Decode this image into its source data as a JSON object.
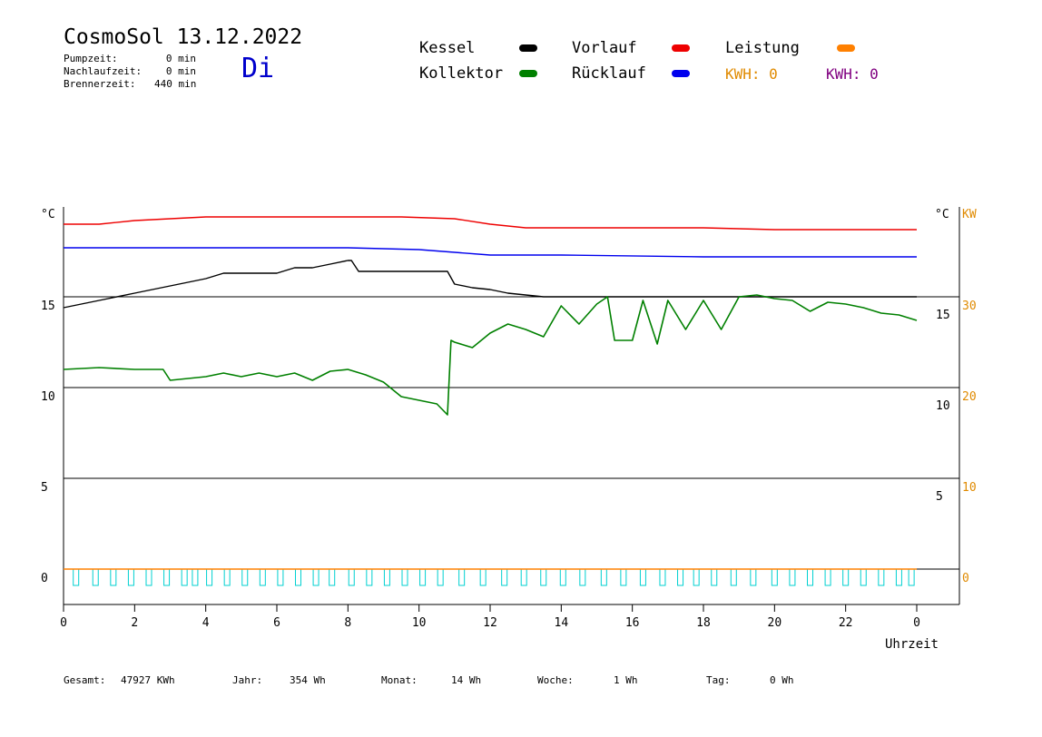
{
  "header": {
    "title": "CosmoSol 13.12.2022",
    "weekday": "Di",
    "stats": [
      {
        "label": "Pumpzeit:",
        "value": "0 min"
      },
      {
        "label": "Nachlaufzeit:",
        "value": "0 min"
      },
      {
        "label": "Brennerzeit:",
        "value": "440 min"
      }
    ]
  },
  "legend": {
    "items": [
      {
        "label": "Kessel",
        "color": "#000000"
      },
      {
        "label": "Vorlauf",
        "color": "#ee0000"
      },
      {
        "label": "Leistung",
        "color": "#ff8000"
      },
      {
        "label": "Kollektor",
        "color": "#008000"
      },
      {
        "label": "Rücklauf",
        "color": "#0000ee"
      }
    ],
    "kwh": [
      {
        "text": "KWH: 0",
        "color": "#e08a00"
      },
      {
        "text": "KWH: 0",
        "color": "#800080"
      }
    ]
  },
  "footer": {
    "gesamt_label": "Gesamt:",
    "gesamt_value": "47927 KWh",
    "jahr_label": "Jahr:",
    "jahr_value": "354 Wh",
    "monat_label": "Monat:",
    "monat_value": "14 Wh",
    "woche_label": "Woche:",
    "woche_value": "1 Wh",
    "tag_label": "Tag:",
    "tag_value": "0 Wh"
  },
  "chart_data": {
    "type": "line",
    "xlabel": "Uhrzeit",
    "xticks": [
      "0",
      "2",
      "4",
      "6",
      "8",
      "10",
      "12",
      "14",
      "16",
      "18",
      "20",
      "22",
      "0"
    ],
    "xlim": [
      0,
      24
    ],
    "y_left": {
      "unit": "°C",
      "ticks": [
        0,
        5,
        10,
        15
      ],
      "lim": [
        -1.5,
        20
      ]
    },
    "y_right_temp": {
      "unit": "°C",
      "ticks": [
        5,
        10,
        15
      ]
    },
    "y_right_power": {
      "unit": "KW",
      "ticks": [
        0,
        10,
        20,
        30
      ],
      "color": "#e08a00"
    },
    "grid": "horizontal",
    "series": [
      {
        "name": "Vorlauf",
        "color": "#ee0000",
        "x": [
          0,
          1,
          2,
          4,
          6,
          8,
          9.5,
          11,
          12,
          13,
          15,
          18,
          20,
          24
        ],
        "y": [
          19.0,
          19.0,
          19.2,
          19.4,
          19.4,
          19.4,
          19.4,
          19.3,
          19.0,
          18.8,
          18.8,
          18.8,
          18.7,
          18.7
        ]
      },
      {
        "name": "Rücklauf",
        "color": "#0000ee",
        "x": [
          0,
          3,
          6,
          8,
          10,
          12,
          14,
          18,
          22,
          24
        ],
        "y": [
          17.7,
          17.7,
          17.7,
          17.7,
          17.6,
          17.3,
          17.3,
          17.2,
          17.2,
          17.2
        ]
      },
      {
        "name": "Kessel",
        "color": "#000000",
        "x": [
          0,
          1,
          2,
          3,
          4,
          4.5,
          5,
          6,
          6.5,
          7,
          7.5,
          8,
          8.1,
          8.3,
          9,
          10,
          10.8,
          11,
          11.5,
          12,
          12.5,
          13,
          13.5,
          14,
          18,
          24
        ],
        "y": [
          14.4,
          14.8,
          15.2,
          15.6,
          16.0,
          16.3,
          16.3,
          16.3,
          16.6,
          16.6,
          16.8,
          17.0,
          17.0,
          16.4,
          16.4,
          16.4,
          16.4,
          15.7,
          15.5,
          15.4,
          15.2,
          15.1,
          15.0,
          15.0,
          15.0,
          15.0
        ]
      },
      {
        "name": "Kollektor",
        "color": "#008000",
        "x": [
          0,
          1,
          2,
          2.8,
          3,
          4,
          4.5,
          5,
          5.5,
          6,
          6.5,
          7,
          7.5,
          8,
          8.5,
          9,
          9.5,
          10,
          10.5,
          10.8,
          10.9,
          11,
          11.5,
          12,
          12.5,
          13,
          13.5,
          14,
          14.5,
          15,
          15.3,
          15.5,
          16,
          16.3,
          16.7,
          17,
          17.5,
          18,
          18.5,
          19,
          19.5,
          20,
          20.5,
          21,
          21.5,
          22,
          22.5,
          23,
          23.5,
          24
        ],
        "y": [
          11.0,
          11.1,
          11.0,
          11.0,
          10.4,
          10.6,
          10.8,
          10.6,
          10.8,
          10.6,
          10.8,
          10.4,
          10.9,
          11.0,
          10.7,
          10.3,
          9.5,
          9.3,
          9.1,
          8.5,
          12.6,
          12.5,
          12.2,
          13.0,
          13.5,
          13.2,
          12.8,
          14.5,
          13.5,
          14.6,
          15.0,
          12.6,
          12.6,
          14.8,
          12.4,
          14.8,
          13.2,
          14.8,
          13.2,
          15.0,
          15.1,
          14.9,
          14.8,
          14.2,
          14.7,
          14.6,
          14.4,
          14.1,
          14.0,
          13.7
        ]
      },
      {
        "name": "Leistung",
        "color": "#ff8000",
        "x": [
          0,
          24
        ],
        "y": [
          0,
          0
        ]
      }
    ],
    "pump_pulses": {
      "color": "#00d0d0",
      "x": [
        0.35,
        0.9,
        1.4,
        1.9,
        2.4,
        2.9,
        3.4,
        3.7,
        4.1,
        4.6,
        5.1,
        5.6,
        6.1,
        6.6,
        7.1,
        7.55,
        8.1,
        8.6,
        9.1,
        9.6,
        10.1,
        10.6,
        11.2,
        11.8,
        12.4,
        12.95,
        13.5,
        14.05,
        14.6,
        15.2,
        15.75,
        16.3,
        16.85,
        17.35,
        17.8,
        18.3,
        18.85,
        19.4,
        20.0,
        20.5,
        21.0,
        21.5,
        22.0,
        22.5,
        23.0,
        23.5,
        23.85
      ]
    }
  }
}
